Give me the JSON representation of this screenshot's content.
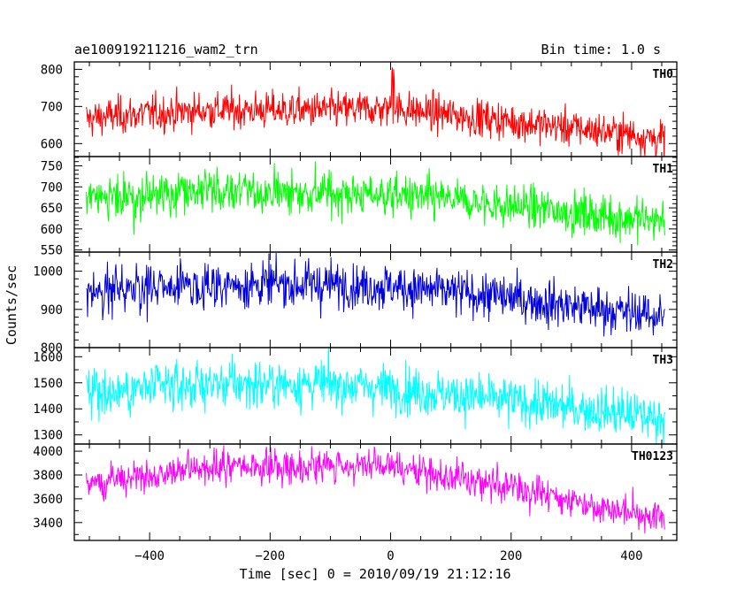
{
  "header": {
    "title": "ae100919211216_wam2_trn",
    "bin_time": "Bin time: 1.0 s"
  },
  "chart_data": {
    "type": "line",
    "xlabel": "Time [sec] 0 = 2010/09/19 21:12:16",
    "ylabel": "Counts/sec",
    "xlim": [
      -525,
      475
    ],
    "x_ticks": [
      -400,
      -200,
      0,
      200,
      400
    ],
    "x_range": [
      -505,
      455
    ],
    "bin_time_s": 1.0,
    "panels": [
      {
        "name": "TH0",
        "color": "#ff0000",
        "ylim": [
          565,
          820
        ],
        "y_ticks": [
          600,
          700,
          800
        ],
        "trend": [
          [
            -505,
            665
          ],
          [
            -460,
            675
          ],
          [
            -300,
            690
          ],
          [
            -100,
            690
          ],
          [
            0,
            695
          ],
          [
            200,
            660
          ],
          [
            400,
            625
          ],
          [
            455,
            610
          ]
        ],
        "noise": 25,
        "spikes": [
          [
            2,
            790
          ],
          [
            3,
            805
          ],
          [
            5,
            800
          ],
          [
            6,
            770
          ]
        ]
      },
      {
        "name": "TH1",
        "color": "#00ff00",
        "ylim": [
          545,
          772
        ],
        "y_ticks": [
          550,
          600,
          650,
          700,
          750
        ],
        "trend": [
          [
            -505,
            665
          ],
          [
            -300,
            690
          ],
          [
            -100,
            685
          ],
          [
            0,
            680
          ],
          [
            200,
            655
          ],
          [
            400,
            625
          ],
          [
            455,
            620
          ]
        ],
        "noise": 25,
        "spikes": []
      },
      {
        "name": "TH2",
        "color": "#0000dd",
        "ylim": [
          800,
          1050
        ],
        "y_ticks": [
          800,
          900,
          1000
        ],
        "trend": [
          [
            -505,
            945
          ],
          [
            -300,
            965
          ],
          [
            -100,
            965
          ],
          [
            0,
            960
          ],
          [
            200,
            930
          ],
          [
            400,
            890
          ],
          [
            455,
            885
          ]
        ],
        "noise": 30,
        "spikes": []
      },
      {
        "name": "TH3",
        "color": "#00ffff",
        "ylim": [
          1265,
          1635
        ],
        "y_ticks": [
          1300,
          1400,
          1500,
          1600
        ],
        "trend": [
          [
            -505,
            1460
          ],
          [
            -300,
            1495
          ],
          [
            -100,
            1495
          ],
          [
            0,
            1480
          ],
          [
            200,
            1430
          ],
          [
            400,
            1380
          ],
          [
            455,
            1360
          ]
        ],
        "noise": 45,
        "spikes": []
      },
      {
        "name": "TH0123",
        "color": "#ff00ff",
        "ylim": [
          3250,
          4060
        ],
        "y_ticks": [
          3400,
          3600,
          3800,
          4000
        ],
        "trend": [
          [
            -505,
            3730
          ],
          [
            -300,
            3860
          ],
          [
            -100,
            3880
          ],
          [
            0,
            3870
          ],
          [
            200,
            3700
          ],
          [
            400,
            3480
          ],
          [
            455,
            3440
          ]
        ],
        "noise": 70,
        "spikes": []
      }
    ]
  }
}
